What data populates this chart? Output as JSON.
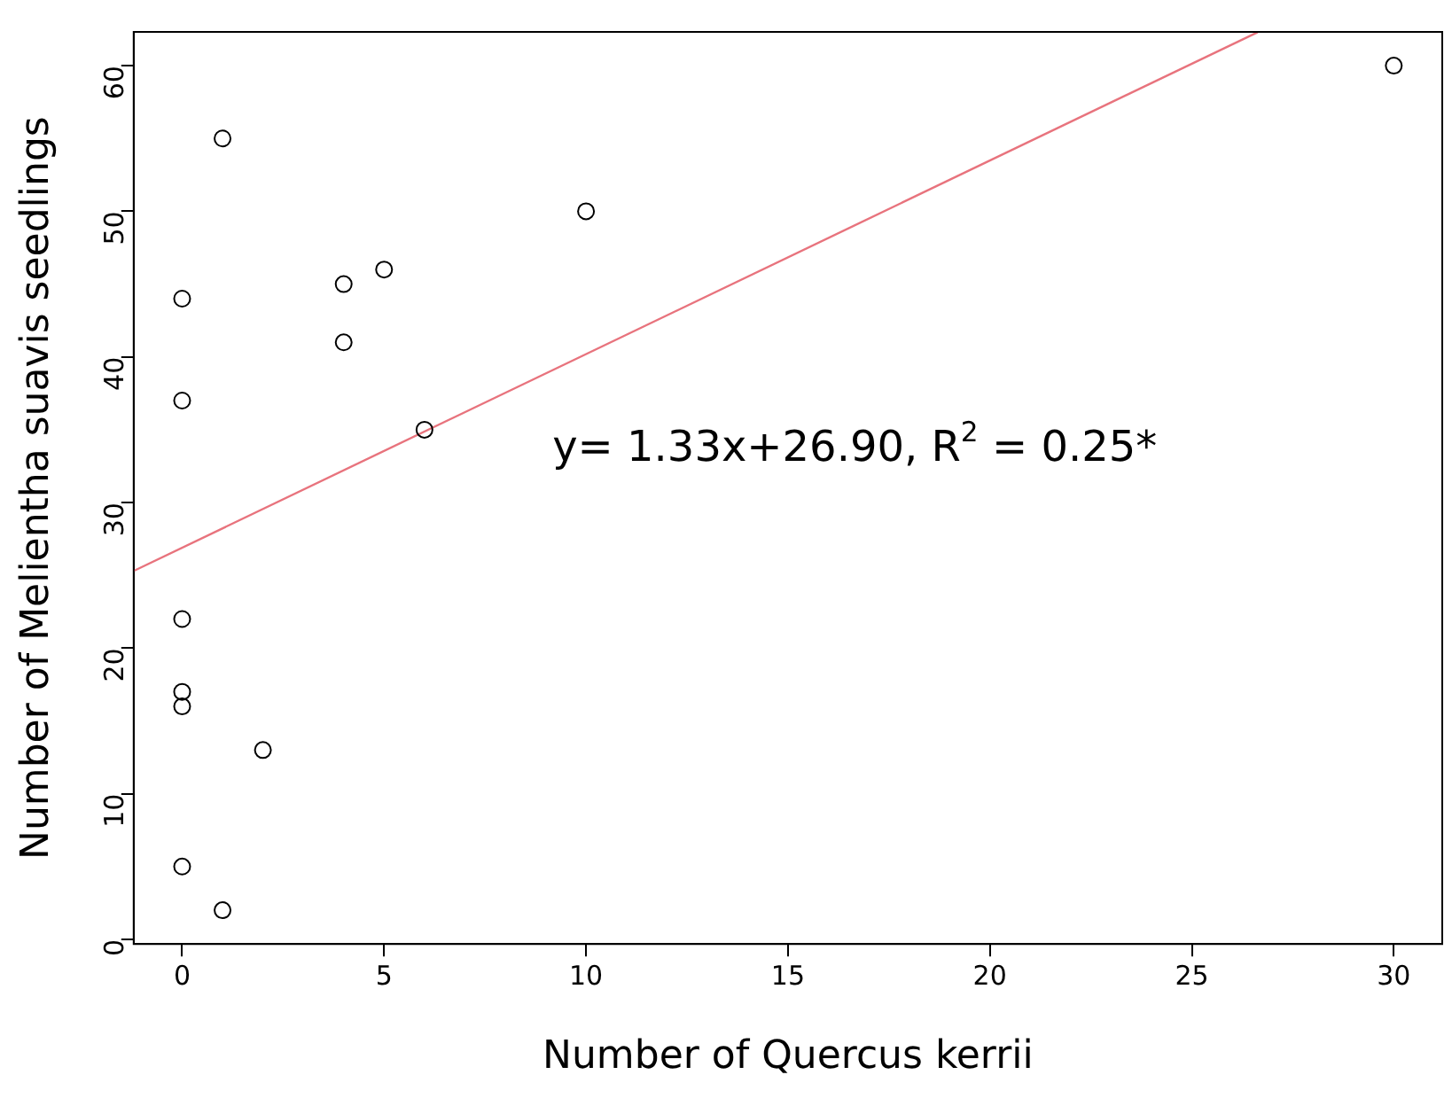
{
  "chart_data": {
    "type": "scatter",
    "xlabel": "Number of Quercus kerrii",
    "ylabel": "Number of Melientha suavis seedlings",
    "annotations": [
      "y= 1.33x+26.90, R$^{2}$ = 0.25*"
    ],
    "series": [
      {
        "color": "#000000",
        "marker": "circle",
        "x": [
          0,
          0,
          0,
          0,
          0,
          0,
          1,
          1,
          2,
          4,
          4,
          5,
          6,
          10,
          30
        ],
        "values": [
          44,
          37,
          22,
          17,
          16,
          5,
          55,
          2,
          13,
          45,
          41,
          46,
          35,
          50,
          60
        ]
      },
      {
        "type": "line",
        "color": "#e8737d",
        "marker": "none",
        "x": [
          -1.2,
          26.63
        ],
        "values": [
          25.3,
          62.3
        ]
      }
    ],
    "xlim": [
      -1.2,
      31.2
    ],
    "ylim": [
      -0.32,
      62.32
    ],
    "xticks": [
      0,
      5,
      10,
      15,
      20,
      25,
      30
    ],
    "yticks": [
      0,
      10,
      20,
      30,
      40,
      50,
      60
    ],
    "grid": false,
    "legend": false
  }
}
